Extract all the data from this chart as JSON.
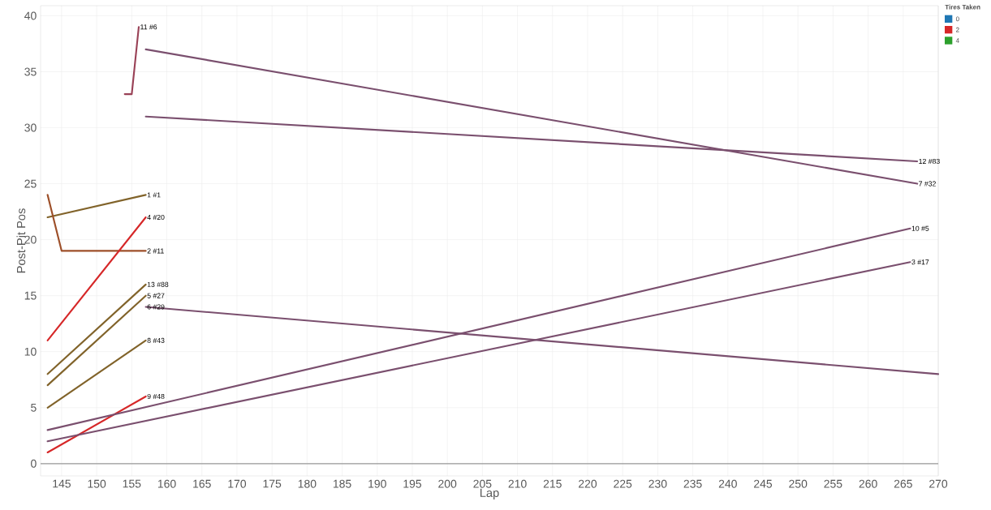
{
  "chart_data": {
    "type": "line",
    "xlabel": "Lap",
    "ylabel": "Post-Pit Pos",
    "legend_title": "Tires Taken",
    "legend": "top right",
    "grid": true,
    "line_style": "solid",
    "marker": "none",
    "xlim": [
      142,
      270
    ],
    "xticks": [
      145,
      150,
      155,
      160,
      165,
      170,
      175,
      180,
      185,
      190,
      195,
      200,
      205,
      210,
      215,
      220,
      225,
      230,
      235,
      240,
      245,
      250,
      255,
      260,
      265,
      270
    ],
    "ylim": [
      -1.1,
      40.9
    ],
    "yticks": [
      0,
      5,
      10,
      15,
      20,
      25,
      30,
      35,
      40
    ],
    "series": [
      {
        "name": "0",
        "color": "#1f77b4"
      },
      {
        "name": "2",
        "color": "#d62728"
      },
      {
        "name": "4",
        "color": "#2ca02c"
      },
      {
        "x": [
          143,
          157
        ],
        "values": [
          22,
          24
        ],
        "colors": [
          "#d62728",
          "#2ca02c"
        ]
      },
      {
        "x": [
          143,
          145,
          157
        ],
        "values": [
          24,
          19,
          19
        ],
        "colors": [
          "#d62728",
          "#d62728",
          "#2ca02c"
        ]
      },
      {
        "x": [
          143,
          157
        ],
        "values": [
          11,
          22
        ],
        "colors": [
          "#d62728",
          "#d62728"
        ]
      },
      {
        "x": [
          143,
          157
        ],
        "values": [
          8,
          16
        ],
        "colors": [
          "#d62728",
          "#2ca02c"
        ]
      },
      {
        "x": [
          143,
          157
        ],
        "values": [
          7,
          15
        ],
        "colors": [
          "#d62728",
          "#2ca02c"
        ]
      },
      {
        "x": [
          143,
          157
        ],
        "values": [
          5,
          11
        ],
        "colors": [
          "#d62728",
          "#2ca02c"
        ]
      },
      {
        "x": [
          143,
          157
        ],
        "values": [
          1,
          6
        ],
        "colors": [
          "#d62728",
          "#d62728"
        ]
      },
      {
        "x": [
          143,
          266
        ],
        "values": [
          3,
          21
        ],
        "colors": [
          "#d62728",
          "#1f77b4"
        ]
      },
      {
        "x": [
          143,
          266
        ],
        "values": [
          2,
          18
        ],
        "colors": [
          "#d62728",
          "#1f77b4"
        ]
      },
      {
        "x": [
          157,
          267
        ],
        "values": [
          37,
          25
        ],
        "colors": [
          "#d62728",
          "#1f77b4"
        ]
      },
      {
        "x": [
          157,
          267
        ],
        "values": [
          31,
          27
        ],
        "colors": [
          "#d62728",
          "#1f77b4"
        ]
      },
      {
        "x": [
          154,
          155,
          156
        ],
        "values": [
          33,
          33,
          39
        ],
        "colors": [
          "#d62728",
          "#d62728",
          "#1f77b4"
        ]
      },
      {
        "x": [
          157,
          270
        ],
        "values": [
          14,
          8
        ],
        "colors": [
          "#d62728",
          "#1f77b4"
        ]
      }
    ],
    "ref_lines": [
      {
        "axis": "y",
        "value": 0,
        "color": "#999999"
      }
    ],
    "annotations": [
      {
        "text": "1 #1",
        "x": 157,
        "y": 24
      },
      {
        "text": "2 #11",
        "x": 157,
        "y": 19
      },
      {
        "text": "4 #20",
        "x": 157,
        "y": 22
      },
      {
        "text": "13 #88",
        "x": 157,
        "y": 16
      },
      {
        "text": "5 #27",
        "x": 157,
        "y": 15
      },
      {
        "text": "8 #43",
        "x": 157,
        "y": 11
      },
      {
        "text": "9 #48",
        "x": 157,
        "y": 6
      },
      {
        "text": "10 #5",
        "x": 266,
        "y": 21
      },
      {
        "text": "3 #17",
        "x": 266,
        "y": 18
      },
      {
        "text": "7 #32",
        "x": 267,
        "y": 25
      },
      {
        "text": "12 #83",
        "x": 267,
        "y": 27
      },
      {
        "text": "11 #6",
        "x": 156,
        "y": 39
      },
      {
        "text": "6 #29",
        "x": 157,
        "y": 14
      }
    ]
  }
}
